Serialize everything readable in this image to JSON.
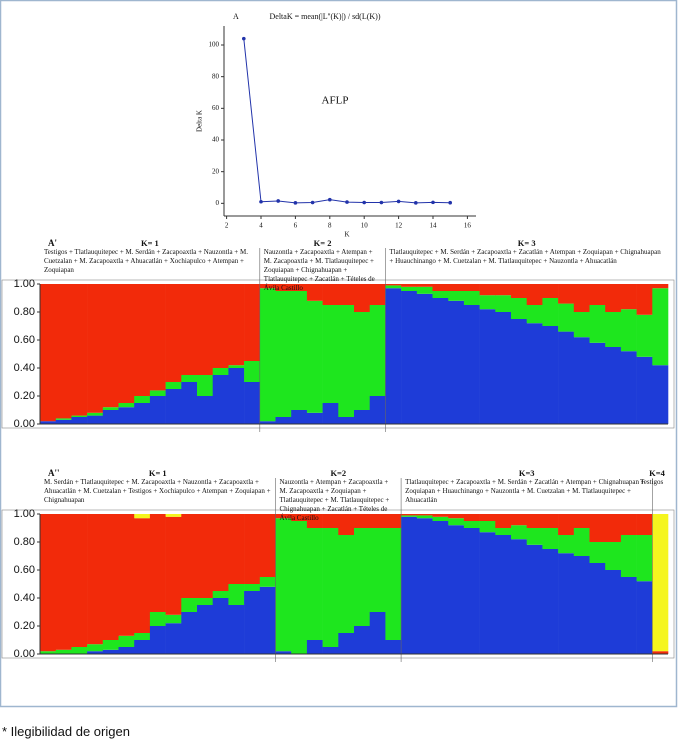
{
  "chart_data": [
    {
      "type": "line",
      "panel": "A",
      "title": "DeltaK = mean(|L''(K)|) / sd(L(K))",
      "annotation": "AFLP",
      "x_label": "K",
      "y_label": "Delta K",
      "x": [
        3,
        4,
        5,
        6,
        7,
        8,
        9,
        10,
        11,
        12,
        13,
        14,
        15
      ],
      "values": [
        104,
        1,
        1.5,
        0.3,
        0.5,
        2.3,
        0.8,
        0.5,
        0.5,
        1.2,
        0.3,
        0.6,
        0.4
      ],
      "color": "#2233aa",
      "xlim": [
        1.5,
        16.5
      ],
      "xticks": [
        2,
        4,
        6,
        8,
        10,
        12,
        14,
        16
      ],
      "ylim": [
        -8,
        112
      ],
      "yticks": [
        0,
        20,
        40,
        60,
        80,
        100
      ]
    },
    {
      "type": "structure",
      "panel": "A'",
      "ylim": [
        0,
        1
      ],
      "yticks": [
        {
          "value": 0,
          "label": "0.00"
        },
        {
          "value": 0.2,
          "label": "0.20"
        },
        {
          "value": 0.4,
          "label": "0.40"
        },
        {
          "value": 0.6,
          "label": "0.60"
        },
        {
          "value": 0.8,
          "label": "0.80"
        },
        {
          "value": 1,
          "label": "1.00"
        }
      ],
      "groups": [
        {
          "label": "K= 1",
          "text": "Testigos + Tlatlauquitepec + M. Serdán + Zacapoaxtla + Nauzontla + M. Cuetzalan + M. Zacapoaxtla + Ahuacatlán + Xochiapulco + Atempan + Zoquiapan",
          "series": [
            {
              "color": "#1e3cd8",
              "values": [
                0.02,
                0.03,
                0.05,
                0.06,
                0.1,
                0.12,
                0.15,
                0.2,
                0.25,
                0.3,
                0.2,
                0.35,
                0.4,
                0.3
              ]
            },
            {
              "color": "#1ee61e",
              "values": [
                0,
                0.01,
                0.01,
                0.02,
                0.02,
                0.03,
                0.05,
                0.04,
                0.05,
                0.05,
                0.15,
                0.05,
                0.02,
                0.15
              ]
            },
            {
              "color": "#f22a0a",
              "values": [
                0.98,
                0.96,
                0.94,
                0.92,
                0.88,
                0.85,
                0.8,
                0.76,
                0.7,
                0.65,
                0.65,
                0.6,
                0.58,
                0.55
              ]
            }
          ]
        },
        {
          "label": "K= 2",
          "text": "Nauzontla + Zacapoaxtla + Atempan + M. Zacapoaxtla + M. Tlatlauquitepec + Zoquiapan + Chignahuapan + Tlatlauquitepec + Zacatlán + Tételes de Ávila Castillo",
          "series": [
            {
              "color": "#1e3cd8",
              "values": [
                0.02,
                0.05,
                0.1,
                0.08,
                0.15,
                0.05,
                0.1,
                0.2
              ]
            },
            {
              "color": "#1ee61e",
              "values": [
                0.95,
                0.9,
                0.85,
                0.8,
                0.7,
                0.8,
                0.7,
                0.65
              ]
            },
            {
              "color": "#f22a0a",
              "values": [
                0.03,
                0.05,
                0.05,
                0.12,
                0.15,
                0.15,
                0.2,
                0.15
              ]
            }
          ]
        },
        {
          "label": "K= 3",
          "text": "Tlatlauquitepec + M. Serdán + Zacapoaxtla + Zacatlán + Atempan + Zoquiapan + Chignahuapan + Huauchinango + M. Cuetzalan + M. Tlatlauquitepec + Nauzontla + Ahuacatlán",
          "series": [
            {
              "color": "#1e3cd8",
              "values": [
                0.97,
                0.95,
                0.93,
                0.9,
                0.88,
                0.85,
                0.82,
                0.8,
                0.75,
                0.72,
                0.7,
                0.66,
                0.62,
                0.58,
                0.55,
                0.52,
                0.48,
                0.42
              ]
            },
            {
              "color": "#1ee61e",
              "values": [
                0.02,
                0.03,
                0.05,
                0.05,
                0.07,
                0.1,
                0.1,
                0.12,
                0.15,
                0.13,
                0.2,
                0.2,
                0.18,
                0.27,
                0.25,
                0.3,
                0.3,
                0.55
              ]
            },
            {
              "color": "#f22a0a",
              "values": [
                0.01,
                0.02,
                0.02,
                0.05,
                0.05,
                0.05,
                0.08,
                0.08,
                0.1,
                0.15,
                0.1,
                0.14,
                0.2,
                0.15,
                0.2,
                0.18,
                0.22,
                0.03
              ]
            }
          ]
        }
      ]
    },
    {
      "type": "structure",
      "panel": "A''",
      "ylim": [
        0,
        1
      ],
      "yticks": [
        {
          "value": 0,
          "label": "0.00"
        },
        {
          "value": 0.2,
          "label": "0.20"
        },
        {
          "value": 0.4,
          "label": "0.40"
        },
        {
          "value": 0.6,
          "label": "0.60"
        },
        {
          "value": 0.8,
          "label": "0.80"
        },
        {
          "value": 1,
          "label": "1.00"
        }
      ],
      "groups": [
        {
          "label": "K= 1",
          "text": "M. Serdán + Tlatlauquitepec + M. Zacapoaxtla + Nauzontla + Zacapoaxtla + Ahuacatlán + M. Cuetzalan + Testigos + Xochiapulco + Atempan + Zoquiapan + Chignahuapan",
          "series": [
            {
              "color": "#1e3cd8",
              "values": [
                0,
                0,
                0,
                0.02,
                0.03,
                0.05,
                0.1,
                0.2,
                0.22,
                0.3,
                0.35,
                0.4,
                0.35,
                0.45,
                0.48
              ]
            },
            {
              "color": "#1ee61e",
              "values": [
                0.02,
                0.03,
                0.05,
                0.05,
                0.07,
                0.08,
                0.05,
                0.1,
                0.06,
                0.1,
                0.05,
                0.05,
                0.15,
                0.05,
                0.07
              ]
            },
            {
              "color": "#f22a0a",
              "values": [
                0.98,
                0.97,
                0.95,
                0.93,
                0.9,
                0.87,
                0.82,
                0.7,
                0.7,
                0.6,
                0.6,
                0.55,
                0.5,
                0.5,
                0.45
              ]
            },
            {
              "color": "#f5f51e",
              "values": [
                0,
                0,
                0,
                0,
                0,
                0,
                0.03,
                0,
                0.02,
                0,
                0,
                0,
                0,
                0,
                0
              ]
            }
          ]
        },
        {
          "label": "K=2",
          "text": "Nauzontla + Atempan + Zacapoaxtla + M. Zacapoaxtla + Zoquiapan + Tlatlauquitepec + M. Tlatlauquitepec + Chignahuapan + Zacatlán + Tételes de Ávila Castillo",
          "series": [
            {
              "color": "#1e3cd8",
              "values": [
                0.02,
                0,
                0.1,
                0.05,
                0.15,
                0.2,
                0.3,
                0.1
              ]
            },
            {
              "color": "#1ee61e",
              "values": [
                0.95,
                0.95,
                0.8,
                0.85,
                0.7,
                0.7,
                0.6,
                0.8
              ]
            },
            {
              "color": "#f22a0a",
              "values": [
                0.03,
                0.05,
                0.1,
                0.1,
                0.15,
                0.1,
                0.1,
                0.1
              ]
            },
            {
              "color": "#f5f51e",
              "values": [
                0,
                0,
                0,
                0,
                0,
                0,
                0,
                0
              ]
            }
          ]
        },
        {
          "label": "K=3",
          "text": "Tlatlauquitepec + Zacapoaxtla + M. Serdán + Zacatlán + Atempan + Chignahuapan + Zoquiapan + Huauchinango + Nauzontla + M. Cuetzalan + M. Tlatlauquitepec + Ahuacatlán",
          "series": [
            {
              "color": "#1e3cd8",
              "values": [
                0.98,
                0.97,
                0.95,
                0.92,
                0.9,
                0.87,
                0.85,
                0.82,
                0.78,
                0.75,
                0.72,
                0.7,
                0.65,
                0.6,
                0.55,
                0.52
              ]
            },
            {
              "color": "#1ee61e",
              "values": [
                0.01,
                0.02,
                0.03,
                0.05,
                0.05,
                0.08,
                0.05,
                0.1,
                0.12,
                0.15,
                0.13,
                0.2,
                0.15,
                0.2,
                0.3,
                0.33
              ]
            },
            {
              "color": "#f22a0a",
              "values": [
                0.01,
                0.01,
                0.02,
                0.03,
                0.05,
                0.05,
                0.1,
                0.08,
                0.1,
                0.1,
                0.15,
                0.1,
                0.2,
                0.2,
                0.15,
                0.15
              ]
            },
            {
              "color": "#f5f51e",
              "values": [
                0,
                0,
                0,
                0,
                0,
                0,
                0,
                0,
                0,
                0,
                0,
                0,
                0,
                0,
                0,
                0
              ]
            }
          ]
        },
        {
          "label": "K=4",
          "text": "Testigos",
          "series": [
            {
              "color": "#1e3cd8",
              "values": [
                0
              ]
            },
            {
              "color": "#1ee61e",
              "values": [
                0
              ]
            },
            {
              "color": "#f22a0a",
              "values": [
                0.02
              ]
            },
            {
              "color": "#f5f51e",
              "values": [
                0.98
              ]
            }
          ]
        }
      ]
    }
  ],
  "footnote": "* Ilegibilidad de origen"
}
